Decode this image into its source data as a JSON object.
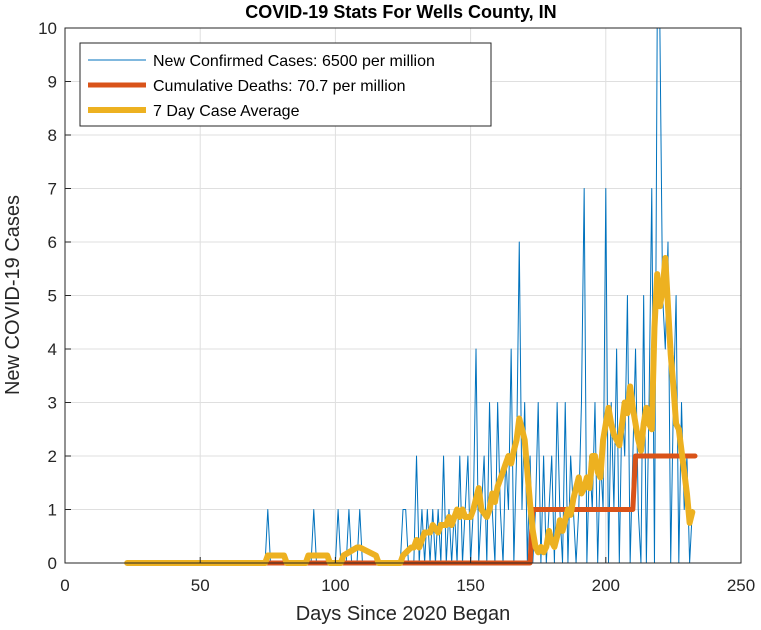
{
  "chart_data": {
    "type": "line",
    "title": "COVID-19 Stats For Wells County, IN",
    "xlabel": "Days Since 2020 Began",
    "ylabel": "New COVID-19 Cases",
    "xlim": [
      0,
      250
    ],
    "ylim": [
      0,
      10
    ],
    "xticks": [
      0,
      50,
      100,
      150,
      200,
      250
    ],
    "yticks": [
      0,
      1,
      2,
      3,
      4,
      5,
      6,
      7,
      8,
      9,
      10
    ],
    "grid": true,
    "legend_position": "top-left",
    "series": [
      {
        "name": "New Confirmed Cases: 6500 per million",
        "color": "#0072BD",
        "width": 1,
        "x": [
          23,
          74,
          75,
          76,
          91,
          92,
          93,
          100,
          101,
          102,
          104,
          105,
          106,
          108,
          109,
          110,
          124,
          125,
          126,
          127,
          128,
          129,
          130,
          131,
          132,
          133,
          134,
          135,
          136,
          137,
          138,
          139,
          140,
          141,
          142,
          143,
          144,
          145,
          146,
          147,
          148,
          149,
          150,
          151,
          152,
          153,
          154,
          155,
          156,
          157,
          158,
          159,
          160,
          161,
          162,
          163,
          164,
          165,
          166,
          167,
          168,
          169,
          170,
          171,
          172,
          173,
          174,
          175,
          176,
          177,
          178,
          179,
          180,
          181,
          182,
          183,
          184,
          185,
          186,
          187,
          188,
          189,
          190,
          191,
          192,
          193,
          194,
          195,
          196,
          197,
          198,
          199,
          200,
          201,
          202,
          203,
          204,
          205,
          206,
          207,
          208,
          209,
          210,
          211,
          212,
          213,
          214,
          215,
          216,
          217,
          218,
          219,
          220,
          221,
          222,
          223,
          224,
          225,
          226,
          227,
          228,
          229,
          230,
          231,
          232
        ],
        "y": [
          0,
          0,
          1,
          0,
          0,
          1,
          0,
          0,
          1,
          0,
          0,
          1,
          0,
          0,
          1,
          0,
          0,
          1,
          1,
          0,
          0,
          0,
          2,
          0,
          1,
          0,
          1,
          0,
          1,
          0,
          1,
          0,
          2,
          0,
          1,
          0,
          1,
          0,
          2,
          0,
          1,
          2,
          0,
          1,
          4,
          0,
          1,
          2,
          0,
          3,
          1,
          0,
          3,
          1,
          0,
          2,
          1,
          4,
          0,
          2,
          6,
          1,
          3,
          0,
          2,
          0,
          1,
          3,
          0,
          2,
          0,
          1,
          2,
          0,
          3,
          1,
          0,
          3,
          0,
          2,
          1,
          0,
          1,
          3,
          7,
          0,
          2,
          1,
          3,
          0,
          2,
          1,
          7,
          0,
          3,
          1,
          4,
          0,
          3,
          2,
          5,
          0,
          2,
          4,
          1,
          0,
          5,
          0,
          3,
          7,
          0,
          10,
          10,
          5,
          4,
          6,
          0,
          3,
          5,
          0,
          3,
          1,
          2,
          0,
          1
        ]
      },
      {
        "name": "Cumulative Deaths: 70.7 per million",
        "color": "#D95319",
        "width": 5,
        "x": [
          23,
          172,
          173,
          210,
          211,
          233
        ],
        "y": [
          0,
          0,
          1,
          1,
          2,
          2
        ]
      },
      {
        "name": "7 Day Case Average",
        "color": "#EDB120",
        "width": 6,
        "x": [
          23,
          74,
          75,
          81,
          82,
          89,
          90,
          97,
          98,
          102,
          103,
          108,
          109,
          115,
          116,
          124,
          125,
          128,
          129,
          130,
          131,
          132,
          133,
          135,
          136,
          138,
          139,
          141,
          142,
          143,
          144,
          145,
          146,
          147,
          148,
          150,
          151,
          153,
          154,
          156,
          157,
          158,
          159,
          160,
          161,
          162,
          163,
          164,
          165,
          166,
          167,
          168,
          169,
          170,
          171,
          172,
          173,
          174,
          175,
          176,
          177,
          178,
          179,
          180,
          181,
          182,
          183,
          184,
          185,
          186,
          187,
          188,
          189,
          190,
          191,
          192,
          193,
          194,
          195,
          196,
          197,
          198,
          199,
          200,
          201,
          202,
          203,
          204,
          205,
          206,
          207,
          208,
          209,
          210,
          211,
          212,
          213,
          214,
          215,
          216,
          217,
          218,
          219,
          220,
          221,
          222,
          223,
          224,
          225,
          226,
          227,
          228,
          229,
          230,
          231,
          232
        ],
        "y": [
          0,
          0,
          0.14,
          0.14,
          0,
          0,
          0.14,
          0.14,
          0,
          0,
          0.14,
          0.29,
          0.29,
          0.14,
          0,
          0,
          0.14,
          0.29,
          0.29,
          0.43,
          0.29,
          0.43,
          0.57,
          0.57,
          0.71,
          0.57,
          0.71,
          0.71,
          0.86,
          0.71,
          0.86,
          1,
          0.86,
          1,
          0.86,
          0.86,
          1,
          1.4,
          1,
          0.86,
          1,
          1.3,
          1.14,
          1.43,
          1.57,
          1.71,
          1.86,
          2,
          1.86,
          2.1,
          2.3,
          2.7,
          2.5,
          2.3,
          1.7,
          1.1,
          0.6,
          0.3,
          0.2,
          0.3,
          0.2,
          0.3,
          0.6,
          0.4,
          0.3,
          0.5,
          0.8,
          0.6,
          0.8,
          1,
          0.9,
          1.2,
          1.4,
          1.6,
          1.3,
          1.4,
          1.6,
          1.4,
          2,
          2,
          1.7,
          1.6,
          2.3,
          2.6,
          2.9,
          2.6,
          2.4,
          2.3,
          2.2,
          2.6,
          3,
          2.8,
          3.3,
          2.9,
          2.6,
          2.3,
          2.1,
          2.6,
          2.9,
          2.6,
          2.5,
          4.4,
          5.4,
          4.8,
          5.1,
          5.7,
          4.8,
          3.9,
          3.3,
          2.6,
          2.5,
          2.1,
          1.7,
          1.3,
          0.75,
          0.95
        ]
      }
    ]
  }
}
